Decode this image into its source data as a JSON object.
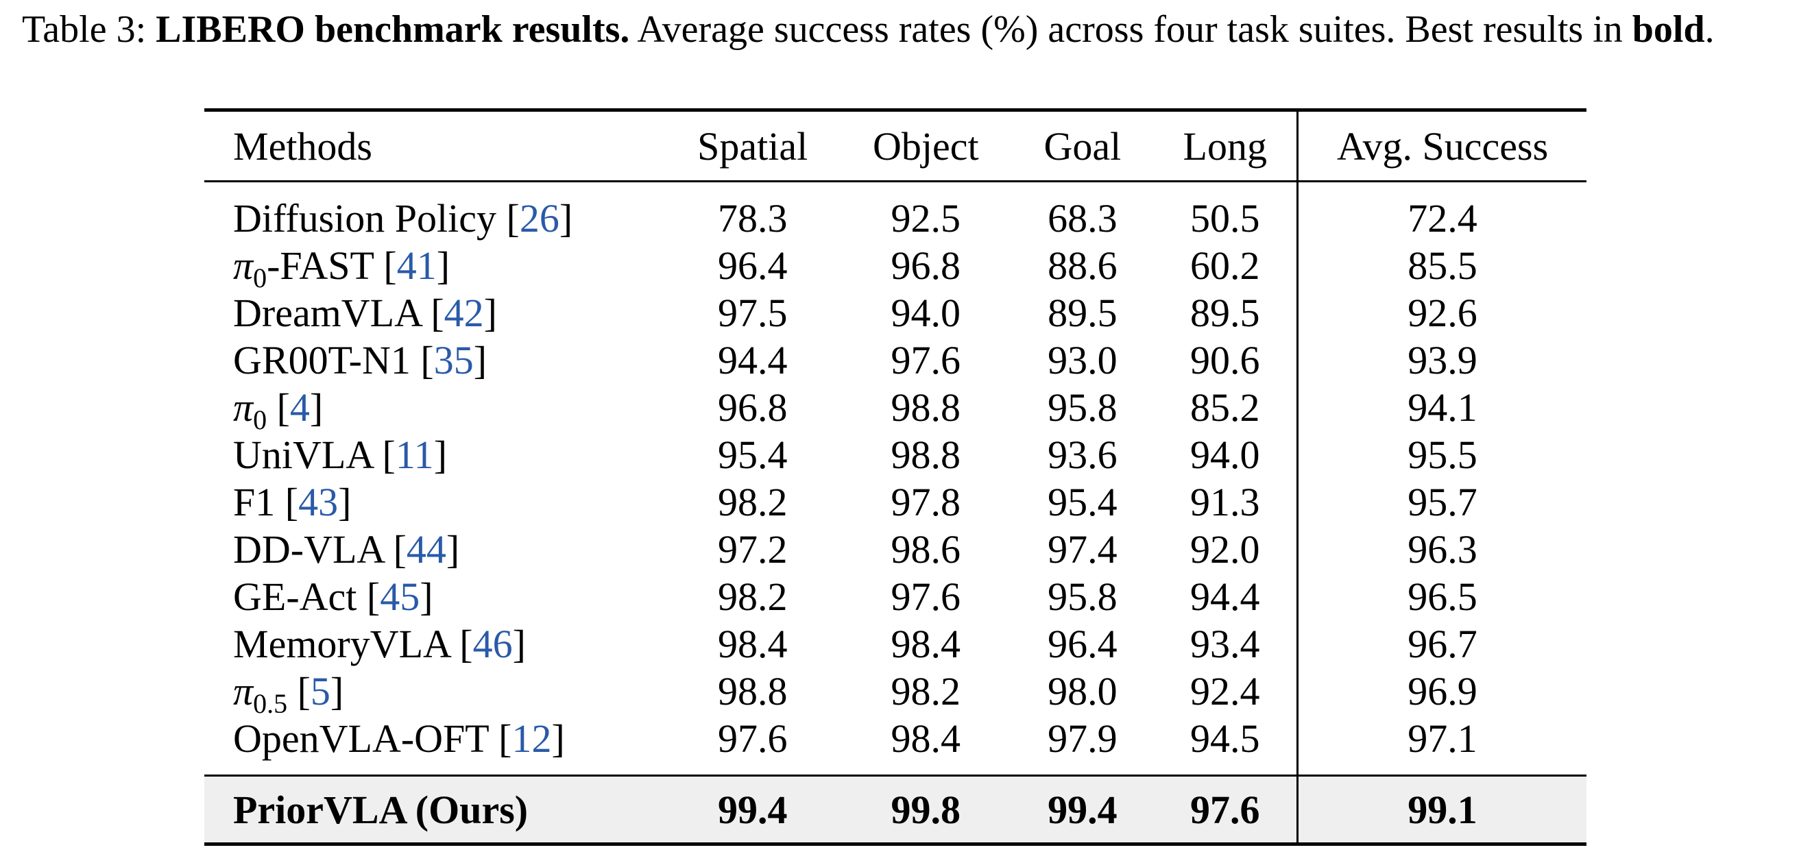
{
  "caption": {
    "label": "Table 3:",
    "title": "LIBERO benchmark results.",
    "text": " Average success rates (%) across four task suites. Best results in ",
    "bold_word": "bold",
    "end": "."
  },
  "table": {
    "headers": [
      "Methods",
      "Spatial",
      "Object",
      "Goal",
      "Long",
      "Avg. Success"
    ],
    "rows": [
      {
        "name": "Diffusion Policy",
        "cite": "26",
        "values": [
          "78.3",
          "92.5",
          "68.3",
          "50.5",
          "72.4"
        ]
      },
      {
        "name_prefix": "π",
        "name_sub": "0",
        "name": "-FAST",
        "cite": "41",
        "values": [
          "96.4",
          "96.8",
          "88.6",
          "60.2",
          "85.5"
        ]
      },
      {
        "name": "DreamVLA",
        "cite": "42",
        "values": [
          "97.5",
          "94.0",
          "89.5",
          "89.5",
          "92.6"
        ]
      },
      {
        "name": "GR00T-N1",
        "cite": "35",
        "values": [
          "94.4",
          "97.6",
          "93.0",
          "90.6",
          "93.9"
        ]
      },
      {
        "name_prefix": "π",
        "name_sub": "0",
        "name": "",
        "cite": "4",
        "values": [
          "96.8",
          "98.8",
          "95.8",
          "85.2",
          "94.1"
        ]
      },
      {
        "name": "UniVLA",
        "cite": "11",
        "values": [
          "95.4",
          "98.8",
          "93.6",
          "94.0",
          "95.5"
        ]
      },
      {
        "name": "F1",
        "cite": "43",
        "values": [
          "98.2",
          "97.8",
          "95.4",
          "91.3",
          "95.7"
        ]
      },
      {
        "name": "DD-VLA",
        "cite": "44",
        "values": [
          "97.2",
          "98.6",
          "97.4",
          "92.0",
          "96.3"
        ]
      },
      {
        "name": "GE-Act",
        "cite": "45",
        "values": [
          "98.2",
          "97.6",
          "95.8",
          "94.4",
          "96.5"
        ]
      },
      {
        "name": "MemoryVLA",
        "cite": "46",
        "values": [
          "98.4",
          "98.4",
          "96.4",
          "93.4",
          "96.7"
        ]
      },
      {
        "name_prefix": "π",
        "name_sub": "0.5",
        "name": "",
        "cite": "5",
        "values": [
          "98.8",
          "98.2",
          "98.0",
          "92.4",
          "96.9"
        ]
      },
      {
        "name": "OpenVLA-OFT",
        "cite": "12",
        "values": [
          "97.6",
          "98.4",
          "97.9",
          "94.5",
          "97.1"
        ]
      }
    ],
    "ours": {
      "name": "PriorVLA (Ours)",
      "values": [
        "99.4",
        "99.8",
        "99.4",
        "97.6",
        "99.1"
      ]
    }
  },
  "colors": {
    "citation": "#2a5aa8",
    "highlight_row": "#efefef"
  }
}
